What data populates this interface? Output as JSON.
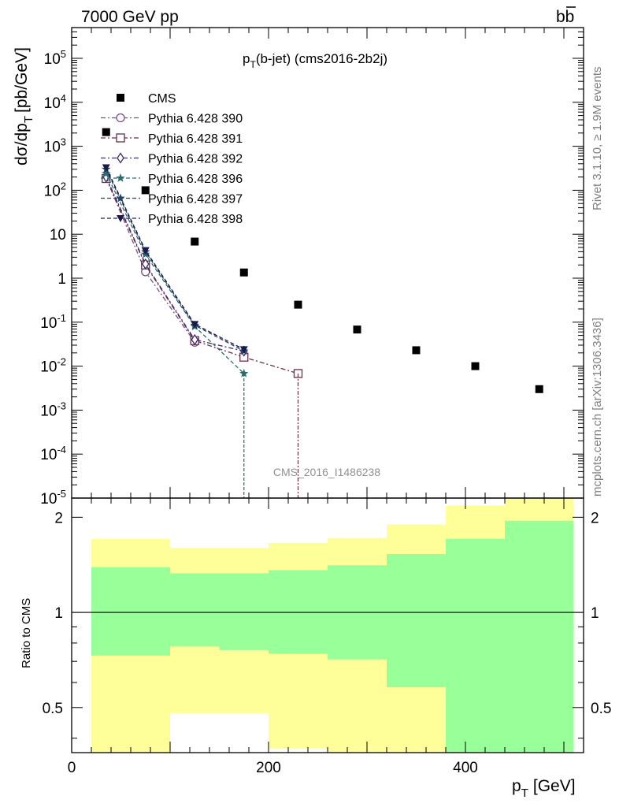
{
  "header": {
    "energy": "7000 GeV pp",
    "process": "bb",
    "title_main": "p",
    "title_sub": "T",
    "title_rest": "(b-jet) (cms2016-2b2j)",
    "side_rivet": "Rivet 3.1.10, ≥ 1.9M events",
    "side_mcplots": "mcplots.cern.ch [arXiv:1306.3436]",
    "watermark": "CMS_2016_I1486238"
  },
  "axes": {
    "y_main": "dσ/dp",
    "y_main_sub": "T",
    "y_main_unit": "[pb/GeV]",
    "y_ratio": "Ratio to CMS",
    "x_main": "p",
    "x_sub": "T",
    "x_unit": "[GeV]"
  },
  "chart_data": {
    "type": "scatter",
    "x_scale": "linear",
    "xlim": [
      0,
      520
    ],
    "y_scale": "log",
    "ylim": [
      1e-05,
      500000.0
    ],
    "y_tick_labels": [
      "10^5",
      "10^4",
      "10^3",
      "10^2",
      "10",
      "1",
      "10^-1",
      "10^-2",
      "10^-3",
      "10^-4",
      "10^-5"
    ],
    "x_tick_labels": [
      "0",
      "200",
      "400"
    ],
    "legend_position": "top-left",
    "series": [
      {
        "name": "CMS",
        "style": "square-filled",
        "color": "#000000",
        "x": [
          35,
          75,
          125,
          175,
          230,
          290,
          350,
          410,
          475
        ],
        "y": [
          2100,
          100,
          6.8,
          1.35,
          0.25,
          0.068,
          0.023,
          0.01,
          0.003
        ]
      },
      {
        "name": "Pythia 6.428 390",
        "style": "circle-open",
        "color": "#7a4e8a",
        "dash": "6,3,2,3",
        "x": [
          35,
          75,
          125
        ],
        "y": [
          190,
          1.4,
          0.035
        ]
      },
      {
        "name": "Pythia 6.428 391",
        "style": "square-open",
        "color": "#6a2d4a",
        "dash": "6,3,2,3",
        "x": [
          35,
          75,
          125,
          175,
          230
        ],
        "y": [
          185,
          2.0,
          0.038,
          0.016,
          0.0068
        ]
      },
      {
        "name": "Pythia 6.428 392",
        "style": "diamond-open",
        "color": "#3e2a6e",
        "dash": "6,3,2,3",
        "x": [
          35,
          75,
          125,
          175
        ],
        "y": [
          200,
          2.1,
          0.04,
          0.022
        ]
      },
      {
        "name": "Pythia 6.428 396",
        "style": "star",
        "color": "#2e6a6e",
        "dash": "5,3",
        "x": [
          35,
          75,
          125,
          175
        ],
        "y": [
          240,
          3.5,
          0.08,
          0.0068
        ]
      },
      {
        "name": "Pythia 6.428 397",
        "style": "star",
        "color": "#1f4466",
        "dash": "5,3",
        "x": [
          35,
          75,
          125,
          175
        ],
        "y": [
          300,
          4.0,
          0.085,
          0.022
        ]
      },
      {
        "name": "Pythia 6.428 398",
        "style": "triangle-down",
        "color": "#1a1a4a",
        "dash": "5,3",
        "x": [
          35,
          75,
          125,
          175
        ],
        "y": [
          330,
          4.3,
          0.09,
          0.024
        ]
      }
    ],
    "ratio": {
      "ylim": [
        0.36,
        2.3
      ],
      "y_tick_labels": [
        "2",
        "1",
        "0.5"
      ],
      "bin_edges": [
        20,
        100,
        150,
        200,
        260,
        320,
        380,
        440,
        510
      ],
      "green_upper": [
        1.39,
        1.33,
        1.33,
        1.36,
        1.41,
        1.53,
        1.71,
        1.95
      ],
      "green_lower": [
        0.73,
        0.78,
        0.76,
        0.74,
        0.71,
        0.58,
        0.36,
        0.36
      ],
      "yellow_upper": [
        1.71,
        1.6,
        1.6,
        1.66,
        1.72,
        1.9,
        2.18,
        2.4
      ],
      "yellow_lower": [
        0.36,
        0.48,
        0.48,
        0.37,
        0.36,
        0.36,
        0.36,
        0.36
      ],
      "green_color": "#99ff99",
      "yellow_color": "#ffff99"
    }
  }
}
